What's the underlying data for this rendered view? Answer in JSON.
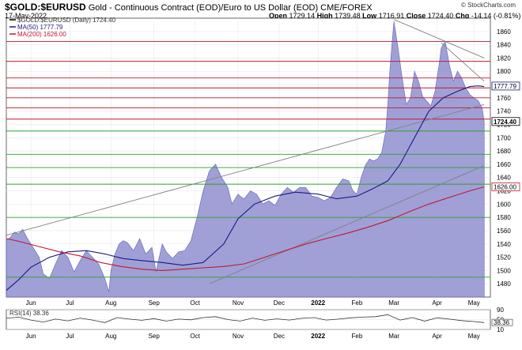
{
  "header": {
    "symbol": "$GOLD:$EURUSD",
    "description": "Gold - Continuous Contract (EOD)/Euro to US Dollar (EOD) CME/FOREX",
    "date": "17-May-2022",
    "open_label": "Open",
    "open": "1729.14",
    "high_label": "High",
    "high": "1739.48",
    "low_label": "Low",
    "low": "1716.91",
    "close_label": "Close",
    "close": "1724.40",
    "chg_label": "Chg",
    "chg": "-14.14 (-0.81%)",
    "brand": "© StockCharts.com"
  },
  "colors": {
    "area": "#8f8fd0",
    "area_line": "#6060b8",
    "ma50": "#1a1a80",
    "ma200": "#c0182f",
    "red_hline": "#c0182f",
    "green_hline": "#2aa02a",
    "trend": "#808080"
  },
  "chart_data": [
    {
      "type": "area",
      "title": "$GOLD:$EURUSD (Daily) 1724.40",
      "ylim": [
        1460,
        1880
      ],
      "yticks": [
        1480,
        1500,
        1520,
        1540,
        1560,
        1580,
        1600,
        1620,
        1640,
        1660,
        1680,
        1700,
        1720,
        1740,
        1760,
        1780,
        1800,
        1820,
        1840,
        1860
      ],
      "xtick_labels": [
        "Jun",
        "Jul",
        "Aug",
        "Sep",
        "Oct",
        "Nov",
        "Dec",
        "2022",
        "Feb",
        "Mar",
        "Apr",
        "May"
      ],
      "xtick_pos": [
        6,
        25,
        45,
        66,
        86,
        107,
        127,
        146,
        165,
        183,
        204,
        222
      ],
      "x_range": [
        -6,
        230
      ],
      "series": [
        {
          "name": "$GOLD:$EURUSD (Daily) 1724.40",
          "kind": "area",
          "x": [
            -6,
            -4,
            -2,
            0,
            2,
            4,
            6,
            8,
            10,
            12,
            15,
            18,
            21,
            24,
            27,
            30,
            33,
            36,
            39,
            42,
            44,
            45,
            47,
            49,
            51,
            53,
            56,
            59,
            62,
            65,
            67,
            68,
            70,
            72,
            75,
            78,
            81,
            84,
            87,
            90,
            93,
            96,
            99,
            102,
            104,
            106,
            107,
            108,
            110,
            113,
            116,
            119,
            122,
            125,
            128,
            131,
            134,
            137,
            140,
            143,
            146,
            149,
            152,
            155,
            158,
            161,
            163,
            165,
            167,
            169,
            171,
            173,
            175,
            177,
            179,
            180,
            181,
            182,
            183,
            185,
            187,
            189,
            191,
            193,
            195,
            197,
            199,
            201,
            203,
            205,
            206,
            208,
            210,
            212,
            214,
            216,
            218,
            220,
            222,
            224,
            226,
            227
          ],
          "y": [
            1545,
            1550,
            1558,
            1555,
            1562,
            1550,
            1540,
            1530,
            1520,
            1495,
            1488,
            1510,
            1530,
            1520,
            1498,
            1515,
            1530,
            1520,
            1510,
            1488,
            1468,
            1500,
            1525,
            1540,
            1545,
            1542,
            1530,
            1548,
            1525,
            1535,
            1498,
            1512,
            1540,
            1528,
            1518,
            1528,
            1530,
            1545,
            1580,
            1620,
            1650,
            1660,
            1640,
            1625,
            1600,
            1610,
            1615,
            1612,
            1608,
            1620,
            1615,
            1600,
            1605,
            1598,
            1615,
            1625,
            1618,
            1625,
            1625,
            1612,
            1610,
            1605,
            1610,
            1625,
            1638,
            1635,
            1620,
            1615,
            1640,
            1658,
            1668,
            1665,
            1668,
            1678,
            1710,
            1750,
            1800,
            1840,
            1875,
            1835,
            1790,
            1750,
            1760,
            1800,
            1785,
            1762,
            1755,
            1748,
            1770,
            1810,
            1835,
            1845,
            1810,
            1785,
            1800,
            1790,
            1775,
            1765,
            1760,
            1756,
            1745,
            1724
          ]
        },
        {
          "name": "MA(50) 1777.79",
          "kind": "line",
          "x": [
            -6,
            0,
            6,
            15,
            24,
            33,
            42,
            51,
            60,
            70,
            80,
            90,
            100,
            107,
            115,
            125,
            135,
            146,
            155,
            165,
            172,
            180,
            186,
            193,
            200,
            207,
            214,
            220,
            224,
            227
          ],
          "y": [
            1470,
            1486,
            1505,
            1520,
            1528,
            1530,
            1525,
            1518,
            1515,
            1512,
            1508,
            1512,
            1540,
            1578,
            1600,
            1612,
            1618,
            1615,
            1608,
            1612,
            1622,
            1635,
            1660,
            1700,
            1740,
            1760,
            1770,
            1777,
            1778,
            1777
          ]
        },
        {
          "name": "MA(200) 1626.00",
          "kind": "line",
          "x": [
            -6,
            0,
            10,
            20,
            30,
            40,
            50,
            60,
            70,
            80,
            90,
            100,
            110,
            120,
            130,
            140,
            150,
            160,
            170,
            180,
            190,
            200,
            210,
            220,
            227
          ],
          "y": [
            1548,
            1544,
            1536,
            1528,
            1522,
            1512,
            1506,
            1502,
            1500,
            1502,
            1504,
            1506,
            1510,
            1520,
            1530,
            1540,
            1548,
            1556,
            1565,
            1575,
            1588,
            1600,
            1610,
            1620,
            1626
          ]
        }
      ],
      "price_labels": [
        {
          "value": 1777.79,
          "text": "1777.79",
          "color": "#1a1a80"
        },
        {
          "value": 1724.4,
          "text": "1724.40",
          "color": "#000000"
        },
        {
          "value": 1626.0,
          "text": "1626.00",
          "color": "#c0182f"
        }
      ],
      "horizontal_lines_red": [
        1845,
        1815,
        1790,
        1775,
        1760,
        1745,
        1728
      ],
      "horizontal_lines_green": [
        1710,
        1675,
        1655,
        1630,
        1580,
        1490
      ],
      "trendlines": [
        {
          "x": [
            -6,
            227
          ],
          "y": [
            1553,
            1750
          ]
        },
        {
          "x": [
            93,
            227
          ],
          "y": [
            1480,
            1658
          ]
        },
        {
          "x": [
            183,
            227
          ],
          "y": [
            1878,
            1820
          ]
        },
        {
          "x": [
            206,
            227
          ],
          "y": [
            1843,
            1785
          ]
        }
      ]
    },
    {
      "type": "line",
      "title": "RSI(14) 38.36",
      "ylim": [
        10,
        90
      ],
      "yticks": [
        10,
        50,
        90
      ],
      "x_range": [
        -6,
        230
      ],
      "series": [
        {
          "name": "RSI(14) 38.36",
          "x": [
            -6,
            0,
            6,
            12,
            18,
            24,
            30,
            36,
            42,
            48,
            54,
            60,
            66,
            72,
            78,
            84,
            90,
            96,
            102,
            108,
            114,
            120,
            126,
            132,
            138,
            144,
            150,
            156,
            162,
            168,
            174,
            180,
            186,
            192,
            198,
            204,
            210,
            216,
            222,
            227
          ],
          "y": [
            55,
            60,
            48,
            40,
            52,
            45,
            56,
            48,
            38,
            58,
            52,
            47,
            54,
            44,
            52,
            49,
            58,
            62,
            50,
            44,
            56,
            47,
            53,
            48,
            55,
            58,
            48,
            52,
            57,
            60,
            62,
            70,
            48,
            58,
            44,
            57,
            52,
            46,
            42,
            38
          ]
        }
      ],
      "price_label": "38.36"
    }
  ]
}
